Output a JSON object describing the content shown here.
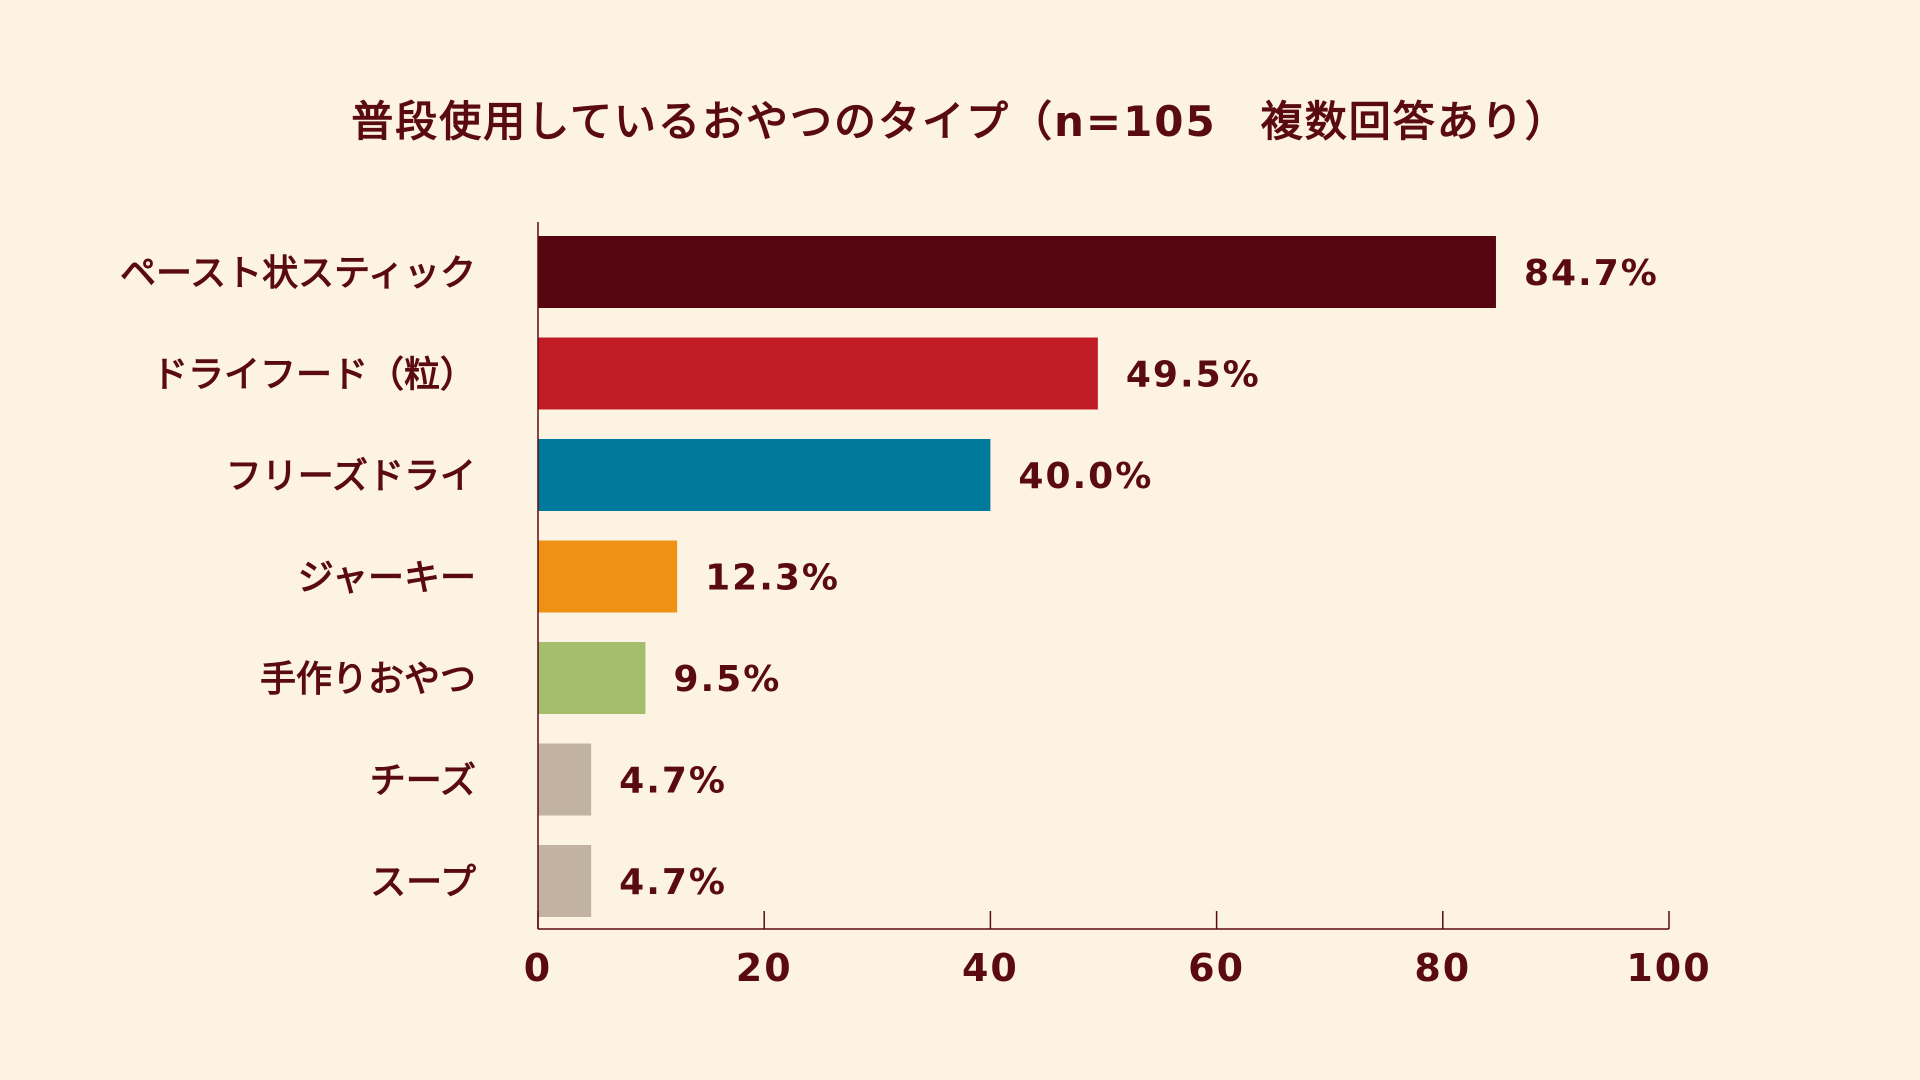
{
  "chart_data": {
    "type": "bar",
    "orientation": "horizontal",
    "title": "普段使用しているおやつのタイプ（n=105　複数回答あり）",
    "categories": [
      "ペースト状スティック",
      "ドライフード（粒）",
      "フリーズドライ",
      "ジャーキー",
      "手作りおやつ",
      "チーズ",
      "スープ"
    ],
    "values": [
      84.7,
      49.5,
      40.0,
      12.3,
      9.5,
      4.7,
      4.7
    ],
    "value_labels": [
      "84.7%",
      "49.5%",
      "40.0%",
      "12.3%",
      "9.5%",
      "4.7%",
      "4.7%"
    ],
    "colors": [
      "#560610",
      "#c11c25",
      "#007a9c",
      "#ee9114",
      "#a3bf6e",
      "#c2b2a1",
      "#c2b2a1"
    ],
    "xlim": [
      0,
      100
    ],
    "xticks": [
      0,
      20,
      40,
      60,
      80,
      100
    ],
    "xtick_labels": [
      "0",
      "20",
      "40",
      "60",
      "80",
      "100"
    ],
    "grid": false,
    "legend": "none"
  },
  "style": {
    "background": "#fdf3e3",
    "text_color": "#5a0a12",
    "axis_color": "#5a0a12"
  }
}
